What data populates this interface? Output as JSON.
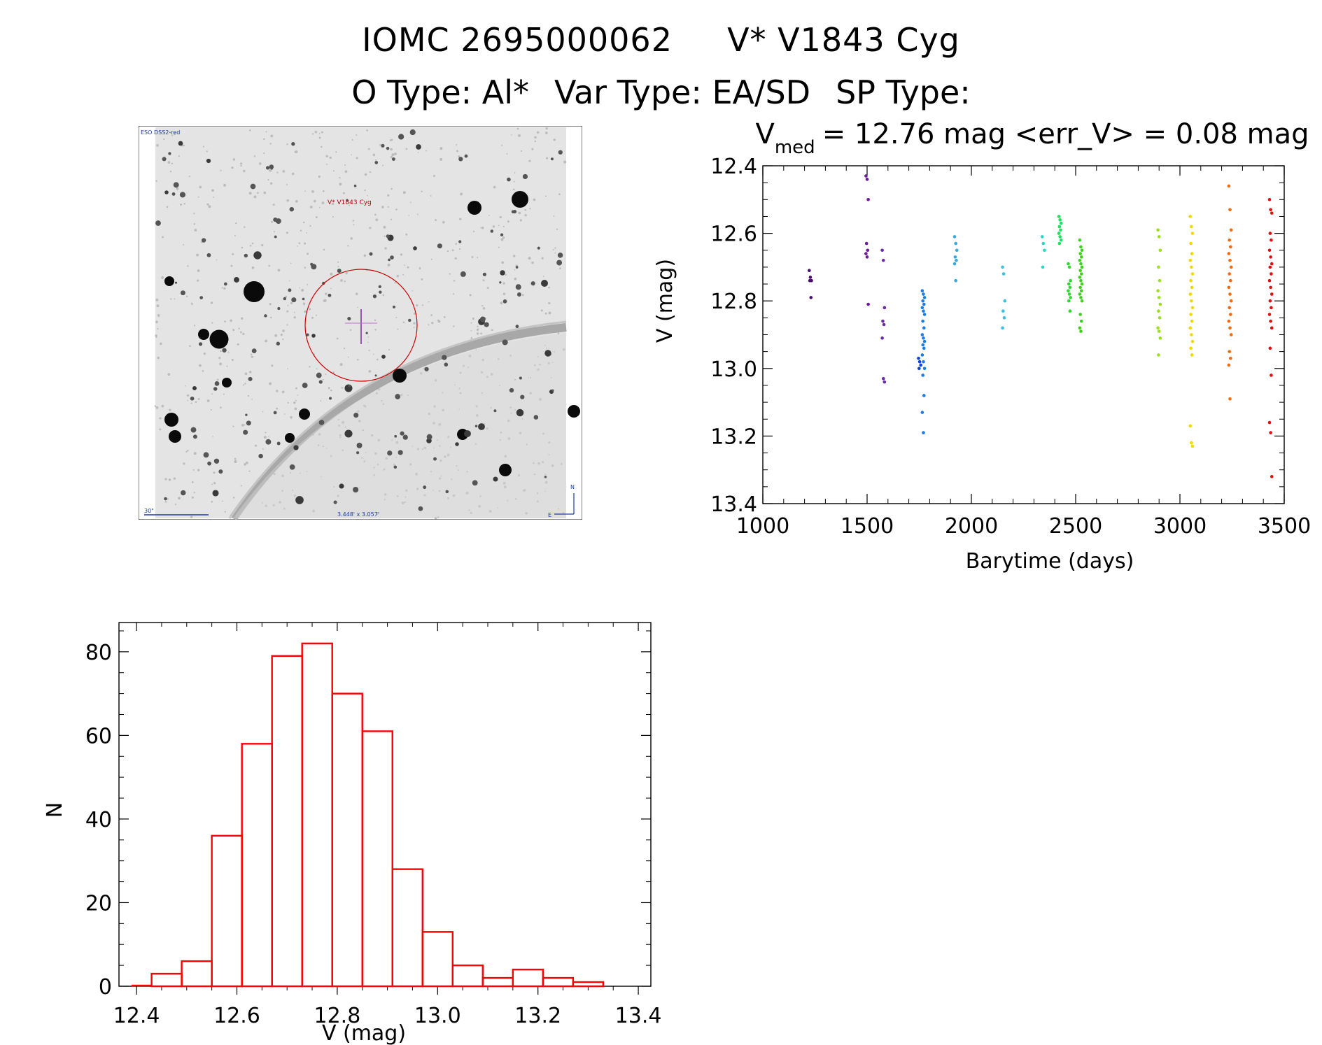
{
  "header": {
    "title_id": "IOMC 2695000062",
    "title_name": "V* V1843 Cyg",
    "obj_type": "O Type: Al*",
    "var_type": "Var Type: EA/SD",
    "sp_type": "SP Type:"
  },
  "finder_chart": {
    "survey_label": "ESO DSS2-red",
    "target_label": "V* V1843 Cyg",
    "scale_label": "30\"",
    "fov_label": "3.448' x 3.057'",
    "north_label": "N",
    "east_label": "E"
  },
  "colors": {
    "histogram": "#ff0000",
    "target_circle": "#cc0000"
  },
  "chart_data": [
    {
      "type": "scatter",
      "title_prefix": "V",
      "title_subscript": "med",
      "title_rest": "= 12.76 mag <err_V> = 0.08 mag",
      "xlabel": "Barytime (days)",
      "ylabel": "V (mag)",
      "xlim": [
        1000,
        3500
      ],
      "ylim": [
        13.4,
        12.4
      ],
      "xticks": [
        "1000",
        "1500",
        "2000",
        "2500",
        "3000",
        "3500"
      ],
      "yticks": [
        "12.4",
        "12.6",
        "12.8",
        "13.0",
        "13.2",
        "13.4"
      ],
      "series": [
        {
          "color": "#4b0a6e",
          "x": 1228,
          "values": [
            12.71,
            12.73,
            12.74,
            12.74,
            12.79
          ]
        },
        {
          "color": "#6a1b9a",
          "x": 1500,
          "values": [
            12.43,
            12.44,
            12.5,
            12.63,
            12.65,
            12.66,
            12.67,
            12.81
          ]
        },
        {
          "color": "#6a2aa8",
          "x": 1578,
          "values": [
            12.65,
            12.68,
            12.82,
            12.86,
            12.87,
            12.91,
            13.03,
            13.04
          ]
        },
        {
          "color": "#1040d8",
          "x": 1752,
          "values": [
            12.97,
            12.98,
            12.99,
            13.0
          ]
        },
        {
          "color": "#1a7ce6",
          "x": 1770,
          "values": [
            12.77,
            12.78,
            12.79,
            12.8,
            12.81,
            12.82,
            12.83,
            12.84,
            12.86,
            12.88,
            12.9,
            12.91,
            12.92,
            12.93,
            12.94,
            12.96,
            12.98,
            13.0,
            13.02,
            13.08,
            13.13,
            13.19
          ]
        },
        {
          "color": "#3aa8e0",
          "x": 1925,
          "values": [
            12.61,
            12.63,
            12.65,
            12.67,
            12.68,
            12.69,
            12.74
          ]
        },
        {
          "color": "#3ac0d8",
          "x": 2155,
          "values": [
            12.7,
            12.72,
            12.8,
            12.83,
            12.85,
            12.88
          ]
        },
        {
          "color": "#28d8c0",
          "x": 2345,
          "values": [
            12.61,
            12.63,
            12.65,
            12.7
          ]
        },
        {
          "color": "#20e060",
          "x": 2425,
          "values": [
            12.55,
            12.56,
            12.57,
            12.58,
            12.59,
            12.6,
            12.61,
            12.62,
            12.63
          ]
        },
        {
          "color": "#30d830",
          "x": 2470,
          "values": [
            12.69,
            12.7,
            12.74,
            12.75,
            12.76,
            12.77,
            12.78,
            12.79,
            12.8,
            12.83
          ]
        },
        {
          "color": "#40d020",
          "x": 2525,
          "values": [
            12.62,
            12.64,
            12.65,
            12.66,
            12.67,
            12.68,
            12.69,
            12.7,
            12.71,
            12.72,
            12.73,
            12.74,
            12.75,
            12.76,
            12.77,
            12.78,
            12.79,
            12.8,
            12.84,
            12.86,
            12.88,
            12.89
          ]
        },
        {
          "color": "#9ae020",
          "x": 2900,
          "values": [
            12.59,
            12.61,
            12.65,
            12.7,
            12.74,
            12.77,
            12.79,
            12.81,
            12.83,
            12.85,
            12.88,
            12.89,
            12.91,
            12.96
          ]
        },
        {
          "color": "#f0d800",
          "x": 3055,
          "values": [
            12.55,
            12.58,
            12.6,
            12.63,
            12.66,
            12.68,
            12.7,
            12.72,
            12.74,
            12.76,
            12.78,
            12.8,
            12.82,
            12.84,
            12.86,
            12.88,
            12.9,
            12.92,
            12.94,
            12.96,
            13.17,
            13.22,
            13.23
          ]
        },
        {
          "color": "#f06a10",
          "x": 3240,
          "values": [
            12.46,
            12.53,
            12.59,
            12.62,
            12.64,
            12.66,
            12.68,
            12.7,
            12.72,
            12.74,
            12.76,
            12.78,
            12.8,
            12.82,
            12.84,
            12.86,
            12.88,
            12.9,
            12.95,
            12.97,
            12.99,
            13.09
          ]
        },
        {
          "color": "#e01010",
          "x": 3435,
          "values": [
            12.5,
            12.53,
            12.54,
            12.6,
            12.62,
            12.65,
            12.67,
            12.69,
            12.7,
            12.72,
            12.74,
            12.76,
            12.78,
            12.8,
            12.82,
            12.84,
            12.86,
            12.88,
            12.94,
            13.02,
            13.16,
            13.19,
            13.32
          ]
        }
      ]
    },
    {
      "type": "bar",
      "style": "histogram",
      "xlabel": "V (mag)",
      "ylabel": "N",
      "xlim": [
        12.4,
        13.4
      ],
      "ylim": [
        0,
        87
      ],
      "xticks": [
        "12.4",
        "12.6",
        "12.8",
        "13.0",
        "13.2",
        "13.4"
      ],
      "yticks": [
        "0",
        "20",
        "40",
        "60",
        "80"
      ],
      "bin_width": 0.06,
      "bin_starts": [
        12.43,
        12.49,
        12.55,
        12.61,
        12.67,
        12.73,
        12.79,
        12.85,
        12.91,
        12.97,
        13.03,
        13.09,
        13.15,
        13.21,
        13.27
      ],
      "values": [
        3,
        6,
        36,
        58,
        79,
        82,
        70,
        61,
        28,
        13,
        5,
        2,
        4,
        2,
        1
      ]
    }
  ]
}
